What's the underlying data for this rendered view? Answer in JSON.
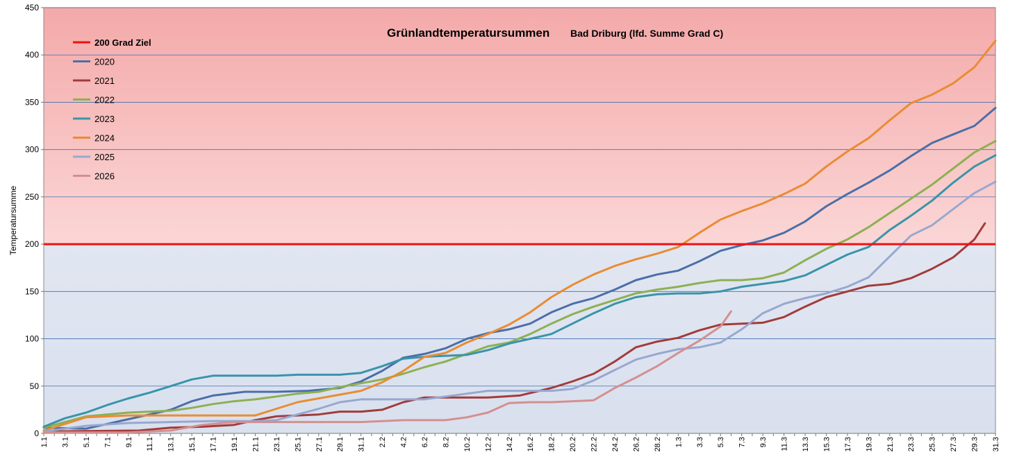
{
  "chart_data": {
    "type": "line",
    "title": "Grünlandtemperatursummen",
    "subtitle": "Bad Driburg (lfd. Summe Grad C)",
    "xlabel": "",
    "ylabel": "Temperatursumme",
    "ylim": [
      0,
      450
    ],
    "yticks": [
      0,
      50,
      100,
      150,
      200,
      250,
      300,
      350,
      400,
      450
    ],
    "xlim": [
      1,
      91
    ],
    "xtick_labels": [
      "1.1",
      "3.1",
      "5.1",
      "7.1",
      "9.1",
      "11.1",
      "13.1",
      "15.1",
      "17.1",
      "19.1",
      "21.1",
      "23.1",
      "25.1",
      "27.1",
      "29.1",
      "31.1",
      "2.2",
      "4.2",
      "6.2",
      "8.2",
      "10.2",
      "12.2",
      "14.2",
      "16.2",
      "18.2",
      "20.2",
      "22.2",
      "24.2",
      "26.2",
      "28.2",
      "1.3",
      "3.3",
      "5.3",
      "7.3",
      "9.3",
      "11.3",
      "13.3",
      "15.3",
      "17.3",
      "19.3",
      "21.3",
      "23.3",
      "25.3",
      "27.3",
      "29.3",
      "31.3"
    ],
    "grid": true,
    "legend_position": "top-left",
    "background_bands": {
      "upper_color": "#f4a9a9",
      "lower_color": "#dce3f0",
      "boundary": 200
    },
    "target_line": {
      "name": "200 Grad Ziel",
      "value": 200,
      "color": "#ee1111"
    },
    "series": [
      {
        "name": "2020",
        "color": "#4a6fa8",
        "days": [
          1,
          5,
          9,
          13,
          15,
          17,
          20,
          23,
          26,
          29,
          31,
          33,
          35,
          37,
          39,
          41,
          43,
          45,
          47,
          49,
          51,
          53,
          55,
          57,
          59,
          61,
          63,
          65,
          67,
          69,
          71,
          73,
          75,
          77,
          79,
          81,
          83,
          85,
          87,
          89,
          91
        ],
        "values": [
          6,
          5,
          15,
          25,
          34,
          40,
          44,
          44,
          45,
          48,
          55,
          66,
          80,
          84,
          90,
          100,
          106,
          110,
          116,
          128,
          137,
          143,
          152,
          162,
          168,
          172,
          182,
          193,
          199,
          204,
          212,
          224,
          240,
          253,
          265,
          278,
          293,
          307,
          316,
          325,
          344
        ]
      },
      {
        "name": "2021",
        "color": "#a23b3b",
        "days": [
          1,
          10,
          13,
          16,
          19,
          21,
          23,
          25,
          27,
          29,
          31,
          33,
          35,
          37,
          39,
          43,
          46,
          49,
          51,
          53,
          55,
          57,
          59,
          61,
          63,
          65,
          67,
          69,
          71,
          73,
          75,
          77,
          79,
          81,
          83,
          85,
          87,
          89,
          90
        ],
        "values": [
          2,
          3,
          6,
          7,
          9,
          14,
          18,
          19,
          20,
          23,
          23,
          25,
          33,
          38,
          38,
          38,
          40,
          48,
          55,
          63,
          76,
          91,
          97,
          101,
          109,
          115,
          116,
          117,
          123,
          134,
          144,
          150,
          156,
          158,
          164,
          174,
          186,
          205,
          222
        ]
      },
      {
        "name": "2022",
        "color": "#8db051",
        "days": [
          1,
          5,
          9,
          13,
          15,
          17,
          19,
          21,
          23,
          25,
          27,
          29,
          31,
          33,
          35,
          37,
          39,
          41,
          43,
          45,
          47,
          49,
          51,
          53,
          55,
          57,
          59,
          61,
          63,
          65,
          67,
          69,
          71,
          73,
          75,
          77,
          79,
          81,
          83,
          85,
          87,
          89,
          91
        ],
        "values": [
          6,
          18,
          22,
          24,
          27,
          31,
          34,
          36,
          39,
          42,
          44,
          49,
          53,
          57,
          63,
          70,
          76,
          84,
          92,
          96,
          105,
          116,
          126,
          134,
          141,
          148,
          152,
          155,
          159,
          162,
          162,
          164,
          170,
          183,
          195,
          205,
          218,
          233,
          248,
          263,
          280,
          297,
          309
        ]
      },
      {
        "name": "2023",
        "color": "#3994a9",
        "days": [
          1,
          3,
          5,
          7,
          9,
          11,
          13,
          15,
          17,
          19,
          21,
          23,
          25,
          27,
          29,
          31,
          33,
          35,
          37,
          39,
          41,
          43,
          45,
          47,
          49,
          51,
          53,
          55,
          57,
          59,
          61,
          63,
          65,
          67,
          69,
          71,
          73,
          75,
          77,
          79,
          81,
          83,
          85,
          87,
          89,
          91
        ],
        "values": [
          7,
          16,
          22,
          30,
          37,
          43,
          50,
          57,
          61,
          61,
          61,
          61,
          62,
          62,
          62,
          64,
          71,
          79,
          81,
          82,
          83,
          88,
          95,
          100,
          105,
          116,
          127,
          137,
          144,
          147,
          148,
          148,
          150,
          155,
          158,
          161,
          167,
          178,
          189,
          197,
          215,
          230,
          246,
          265,
          282,
          294
        ]
      },
      {
        "name": "2024",
        "color": "#e98c33",
        "days": [
          1,
          5,
          9,
          13,
          17,
          21,
          23,
          25,
          27,
          29,
          31,
          33,
          35,
          37,
          39,
          41,
          43,
          45,
          47,
          49,
          51,
          53,
          55,
          57,
          59,
          61,
          63,
          65,
          67,
          69,
          71,
          73,
          75,
          77,
          79,
          81,
          83,
          85,
          87,
          89,
          91
        ],
        "values": [
          3,
          17,
          19,
          19,
          19,
          19,
          26,
          33,
          37,
          41,
          45,
          54,
          66,
          81,
          85,
          96,
          105,
          115,
          128,
          144,
          157,
          168,
          177,
          184,
          190,
          197,
          212,
          226,
          235,
          243,
          253,
          264,
          282,
          298,
          312,
          331,
          349,
          358,
          370,
          387,
          415
        ]
      },
      {
        "name": "2025",
        "color": "#97a8cf",
        "days": [
          1,
          5,
          9,
          13,
          17,
          21,
          23,
          25,
          27,
          29,
          31,
          35,
          37,
          39,
          41,
          43,
          45,
          47,
          49,
          51,
          53,
          55,
          57,
          59,
          61,
          63,
          65,
          67,
          69,
          71,
          73,
          75,
          77,
          79,
          81,
          83,
          85,
          87,
          89,
          91
        ],
        "values": [
          2,
          8,
          11,
          12,
          13,
          13,
          14,
          20,
          26,
          33,
          36,
          36,
          36,
          39,
          42,
          45,
          45,
          45,
          45,
          47,
          56,
          67,
          78,
          84,
          89,
          91,
          96,
          110,
          127,
          137,
          143,
          148,
          155,
          165,
          187,
          209,
          220,
          237,
          254,
          266
        ]
      },
      {
        "name": "2026",
        "color": "#d48f8f",
        "days": [
          1,
          9,
          13,
          16,
          19,
          23,
          27,
          29,
          31,
          33,
          35,
          37,
          39,
          41,
          43,
          45,
          47,
          49,
          51,
          53,
          55,
          57,
          59,
          61,
          63,
          65,
          66
        ],
        "values": [
          1,
          1,
          3,
          9,
          12,
          12,
          12,
          12,
          12,
          13,
          14,
          14,
          14,
          17,
          22,
          32,
          33,
          33,
          34,
          35,
          48,
          59,
          71,
          85,
          98,
          113,
          129
        ]
      }
    ]
  }
}
